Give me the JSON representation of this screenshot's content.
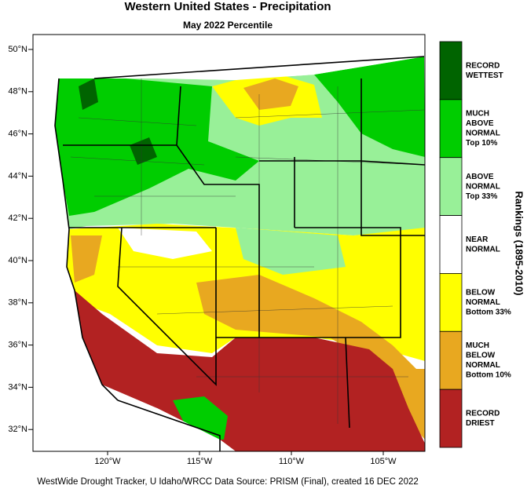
{
  "map": {
    "title": "Western United States - Precipitation",
    "subtitle": "May 2022 Percentile",
    "lat_labels": [
      "50°N",
      "48°N",
      "46°N",
      "44°N",
      "42°N",
      "40°N",
      "38°N",
      "36°N",
      "34°N",
      "32°N"
    ],
    "lon_labels": [
      "120°W",
      "115°W",
      "110°W",
      "105°W"
    ],
    "legend": {
      "title": "Rankings (1895-2010)",
      "entries": [
        {
          "lines": [
            "RECORD",
            "WETTEST"
          ],
          "color": "#006400"
        },
        {
          "lines": [
            "MUCH",
            "ABOVE",
            "NORMAL",
            "Top 10%"
          ],
          "color": "#00cd00"
        },
        {
          "lines": [
            "ABOVE",
            "NORMAL",
            "Top 33%"
          ],
          "color": "#98f098"
        },
        {
          "lines": [
            "NEAR",
            "NORMAL"
          ],
          "color": "#ffffff"
        },
        {
          "lines": [
            "BELOW",
            "NORMAL",
            "Bottom 33%"
          ],
          "color": "#ffff00"
        },
        {
          "lines": [
            "MUCH",
            "BELOW",
            "NORMAL",
            "Bottom 10%"
          ],
          "color": "#e8a820"
        },
        {
          "lines": [
            "RECORD",
            "DRIEST"
          ],
          "color": "#b22222"
        }
      ]
    },
    "footer": "WestWide Drought Tracker, U Idaho/WRCC Data Source: PRISM (Final), created 16 DEC 2022"
  }
}
